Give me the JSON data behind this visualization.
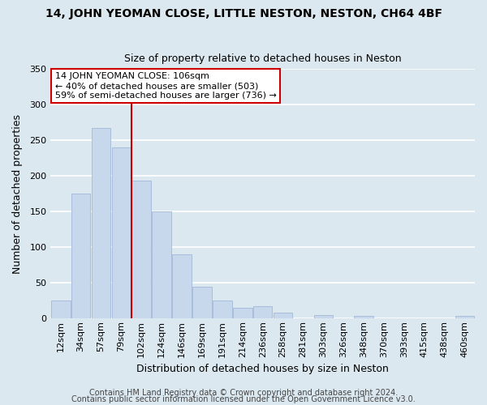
{
  "title": "14, JOHN YEOMAN CLOSE, LITTLE NESTON, NESTON, CH64 4BF",
  "subtitle": "Size of property relative to detached houses in Neston",
  "xlabel": "Distribution of detached houses by size in Neston",
  "ylabel": "Number of detached properties",
  "bar_labels": [
    "12sqm",
    "34sqm",
    "57sqm",
    "79sqm",
    "102sqm",
    "124sqm",
    "146sqm",
    "169sqm",
    "191sqm",
    "214sqm",
    "236sqm",
    "258sqm",
    "281sqm",
    "303sqm",
    "326sqm",
    "348sqm",
    "370sqm",
    "393sqm",
    "415sqm",
    "438sqm",
    "460sqm"
  ],
  "bar_heights": [
    25,
    175,
    267,
    240,
    193,
    150,
    90,
    45,
    25,
    15,
    18,
    8,
    0,
    5,
    0,
    4,
    0,
    0,
    0,
    0,
    4
  ],
  "bar_color": "#c8d8ec",
  "bar_edge_color": "#a0b8d8",
  "vline_index": 4,
  "vline_color": "#cc0000",
  "annotation_text": "14 JOHN YEOMAN CLOSE: 106sqm\n← 40% of detached houses are smaller (503)\n59% of semi-detached houses are larger (736) →",
  "annotation_box_facecolor": "#ffffff",
  "annotation_box_edgecolor": "#cc0000",
  "ylim": [
    0,
    350
  ],
  "yticks": [
    0,
    50,
    100,
    150,
    200,
    250,
    300,
    350
  ],
  "footer1": "Contains HM Land Registry data © Crown copyright and database right 2024.",
  "footer2": "Contains public sector information licensed under the Open Government Licence v3.0.",
  "bg_color": "#dce8f0",
  "grid_color": "#ffffff",
  "title_fontsize": 10,
  "subtitle_fontsize": 9,
  "axis_label_fontsize": 9,
  "tick_fontsize": 8,
  "footer_fontsize": 7
}
